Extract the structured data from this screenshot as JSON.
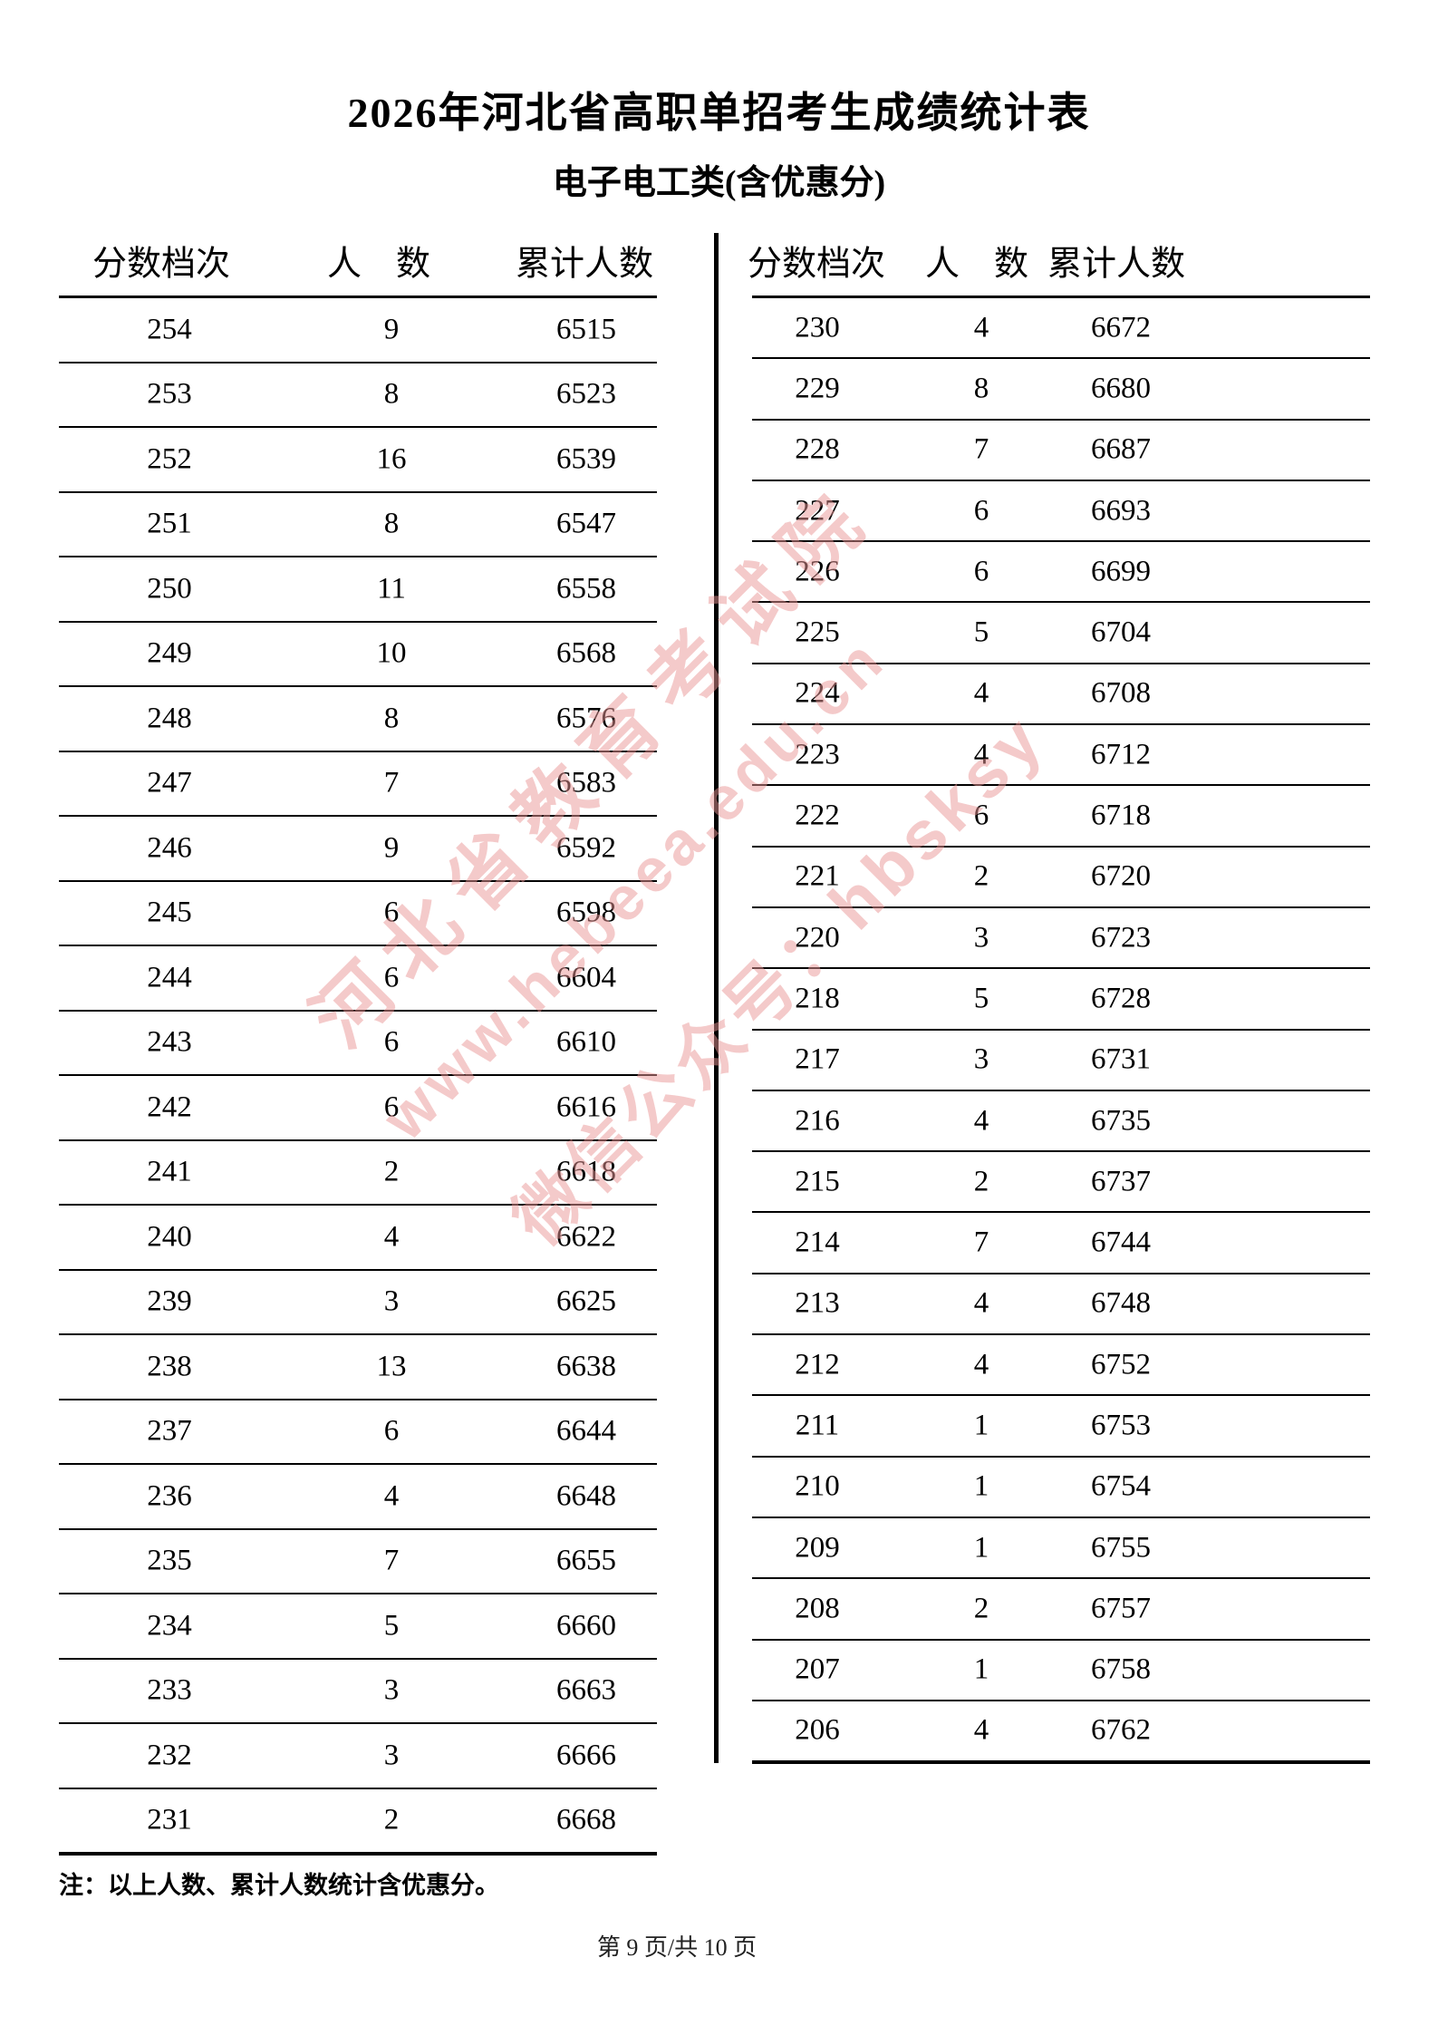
{
  "page": {
    "title": "2026年河北省高职单招考生成绩统计表",
    "subtitle": "电子电工类(含优惠分)",
    "footnote": "注：以上人数、累计人数统计含优惠分。",
    "page_indicator": "第 9 页/共 10 页"
  },
  "table": {
    "columns": [
      "分数档次",
      "人　数",
      "累计人数"
    ],
    "left_rows": [
      [
        254,
        9,
        6515
      ],
      [
        253,
        8,
        6523
      ],
      [
        252,
        16,
        6539
      ],
      [
        251,
        8,
        6547
      ],
      [
        250,
        11,
        6558
      ],
      [
        249,
        10,
        6568
      ],
      [
        248,
        8,
        6576
      ],
      [
        247,
        7,
        6583
      ],
      [
        246,
        9,
        6592
      ],
      [
        245,
        6,
        6598
      ],
      [
        244,
        6,
        6604
      ],
      [
        243,
        6,
        6610
      ],
      [
        242,
        6,
        6616
      ],
      [
        241,
        2,
        6618
      ],
      [
        240,
        4,
        6622
      ],
      [
        239,
        3,
        6625
      ],
      [
        238,
        13,
        6638
      ],
      [
        237,
        6,
        6644
      ],
      [
        236,
        4,
        6648
      ],
      [
        235,
        7,
        6655
      ],
      [
        234,
        5,
        6660
      ],
      [
        233,
        3,
        6663
      ],
      [
        232,
        3,
        6666
      ],
      [
        231,
        2,
        6668
      ]
    ],
    "right_rows": [
      [
        230,
        4,
        6672
      ],
      [
        229,
        8,
        6680
      ],
      [
        228,
        7,
        6687
      ],
      [
        227,
        6,
        6693
      ],
      [
        226,
        6,
        6699
      ],
      [
        225,
        5,
        6704
      ],
      [
        224,
        4,
        6708
      ],
      [
        223,
        4,
        6712
      ],
      [
        222,
        6,
        6718
      ],
      [
        221,
        2,
        6720
      ],
      [
        220,
        3,
        6723
      ],
      [
        218,
        5,
        6728
      ],
      [
        217,
        3,
        6731
      ],
      [
        216,
        4,
        6735
      ],
      [
        215,
        2,
        6737
      ],
      [
        214,
        7,
        6744
      ],
      [
        213,
        4,
        6748
      ],
      [
        212,
        4,
        6752
      ],
      [
        211,
        1,
        6753
      ],
      [
        210,
        1,
        6754
      ],
      [
        209,
        1,
        6755
      ],
      [
        208,
        2,
        6757
      ],
      [
        207,
        1,
        6758
      ],
      [
        206,
        4,
        6762
      ]
    ]
  },
  "watermark": {
    "line1": "河北省教育考试院",
    "line2": "www.hebeea.edu.cn",
    "line3": "微信公众号：hbsksy",
    "color": "#ea9696"
  }
}
